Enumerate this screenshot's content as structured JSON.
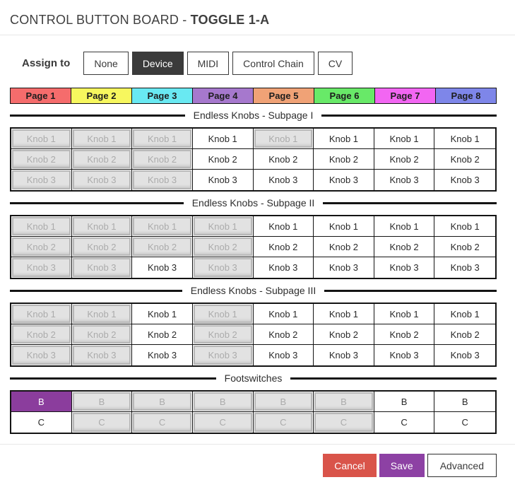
{
  "header": {
    "title_prefix": "CONTROL BUTTON BOARD - ",
    "title_bold": "TOGGLE 1-A"
  },
  "assign": {
    "label": "Assign to",
    "options": [
      {
        "label": "None",
        "selected": false
      },
      {
        "label": "Device",
        "selected": true
      },
      {
        "label": "MIDI",
        "selected": false
      },
      {
        "label": "Control Chain",
        "selected": false
      },
      {
        "label": "CV",
        "selected": false
      }
    ]
  },
  "pages": [
    {
      "label": "Page 1",
      "color": "#f56c6c"
    },
    {
      "label": "Page 2",
      "color": "#f7f75e"
    },
    {
      "label": "Page 3",
      "color": "#69e9f2"
    },
    {
      "label": "Page 4",
      "color": "#a678cd"
    },
    {
      "label": "Page 5",
      "color": "#f0a276"
    },
    {
      "label": "Page 6",
      "color": "#68e968"
    },
    {
      "label": "Page 7",
      "color": "#f266f2"
    },
    {
      "label": "Page 8",
      "color": "#7e86e9"
    }
  ],
  "sections": [
    {
      "title": "Endless Knobs - Subpage I",
      "rows": [
        {
          "label": "Knob 1",
          "cells": [
            "disabled",
            "disabled",
            "disabled",
            "enabled",
            "disabled",
            "enabled",
            "enabled",
            "enabled"
          ]
        },
        {
          "label": "Knob 2",
          "cells": [
            "disabled",
            "disabled",
            "disabled",
            "enabled",
            "enabled",
            "enabled",
            "enabled",
            "enabled"
          ]
        },
        {
          "label": "Knob 3",
          "cells": [
            "disabled",
            "disabled",
            "disabled",
            "enabled",
            "enabled",
            "enabled",
            "enabled",
            "enabled"
          ]
        }
      ]
    },
    {
      "title": "Endless Knobs - Subpage II",
      "rows": [
        {
          "label": "Knob 1",
          "cells": [
            "disabled",
            "disabled",
            "disabled",
            "disabled",
            "enabled",
            "enabled",
            "enabled",
            "enabled"
          ]
        },
        {
          "label": "Knob 2",
          "cells": [
            "disabled",
            "disabled",
            "disabled",
            "disabled",
            "enabled",
            "enabled",
            "enabled",
            "enabled"
          ]
        },
        {
          "label": "Knob 3",
          "cells": [
            "disabled",
            "disabled",
            "enabled",
            "disabled",
            "enabled",
            "enabled",
            "enabled",
            "enabled"
          ]
        }
      ]
    },
    {
      "title": "Endless Knobs - Subpage III",
      "rows": [
        {
          "label": "Knob 1",
          "cells": [
            "disabled",
            "disabled",
            "enabled",
            "disabled",
            "enabled",
            "enabled",
            "enabled",
            "enabled"
          ]
        },
        {
          "label": "Knob 2",
          "cells": [
            "disabled",
            "disabled",
            "enabled",
            "disabled",
            "enabled",
            "enabled",
            "enabled",
            "enabled"
          ]
        },
        {
          "label": "Knob 3",
          "cells": [
            "disabled",
            "disabled",
            "enabled",
            "disabled",
            "enabled",
            "enabled",
            "enabled",
            "enabled"
          ]
        }
      ]
    },
    {
      "title": "Footswitches",
      "rows": [
        {
          "label": "B",
          "cells": [
            "selected",
            "disabled",
            "disabled",
            "disabled",
            "disabled",
            "disabled",
            "enabled",
            "enabled"
          ]
        },
        {
          "label": "C",
          "cells": [
            "enabled",
            "disabled",
            "disabled",
            "disabled",
            "disabled",
            "disabled",
            "enabled",
            "enabled"
          ]
        }
      ]
    }
  ],
  "colors": {
    "accent_dark": "#3b3b3b",
    "grid_border": "#141414",
    "disabled_bg": "#e2e2e2",
    "disabled_text": "#ababab",
    "selected_footswitch": "#8b3d9d"
  },
  "actions": [
    {
      "label": "Cancel",
      "style": "cancel",
      "color": "#d9544a"
    },
    {
      "label": "Save",
      "style": "save",
      "color": "#8d41a4"
    },
    {
      "label": "Advanced",
      "style": "advanced",
      "color": "#ffffff"
    }
  ]
}
